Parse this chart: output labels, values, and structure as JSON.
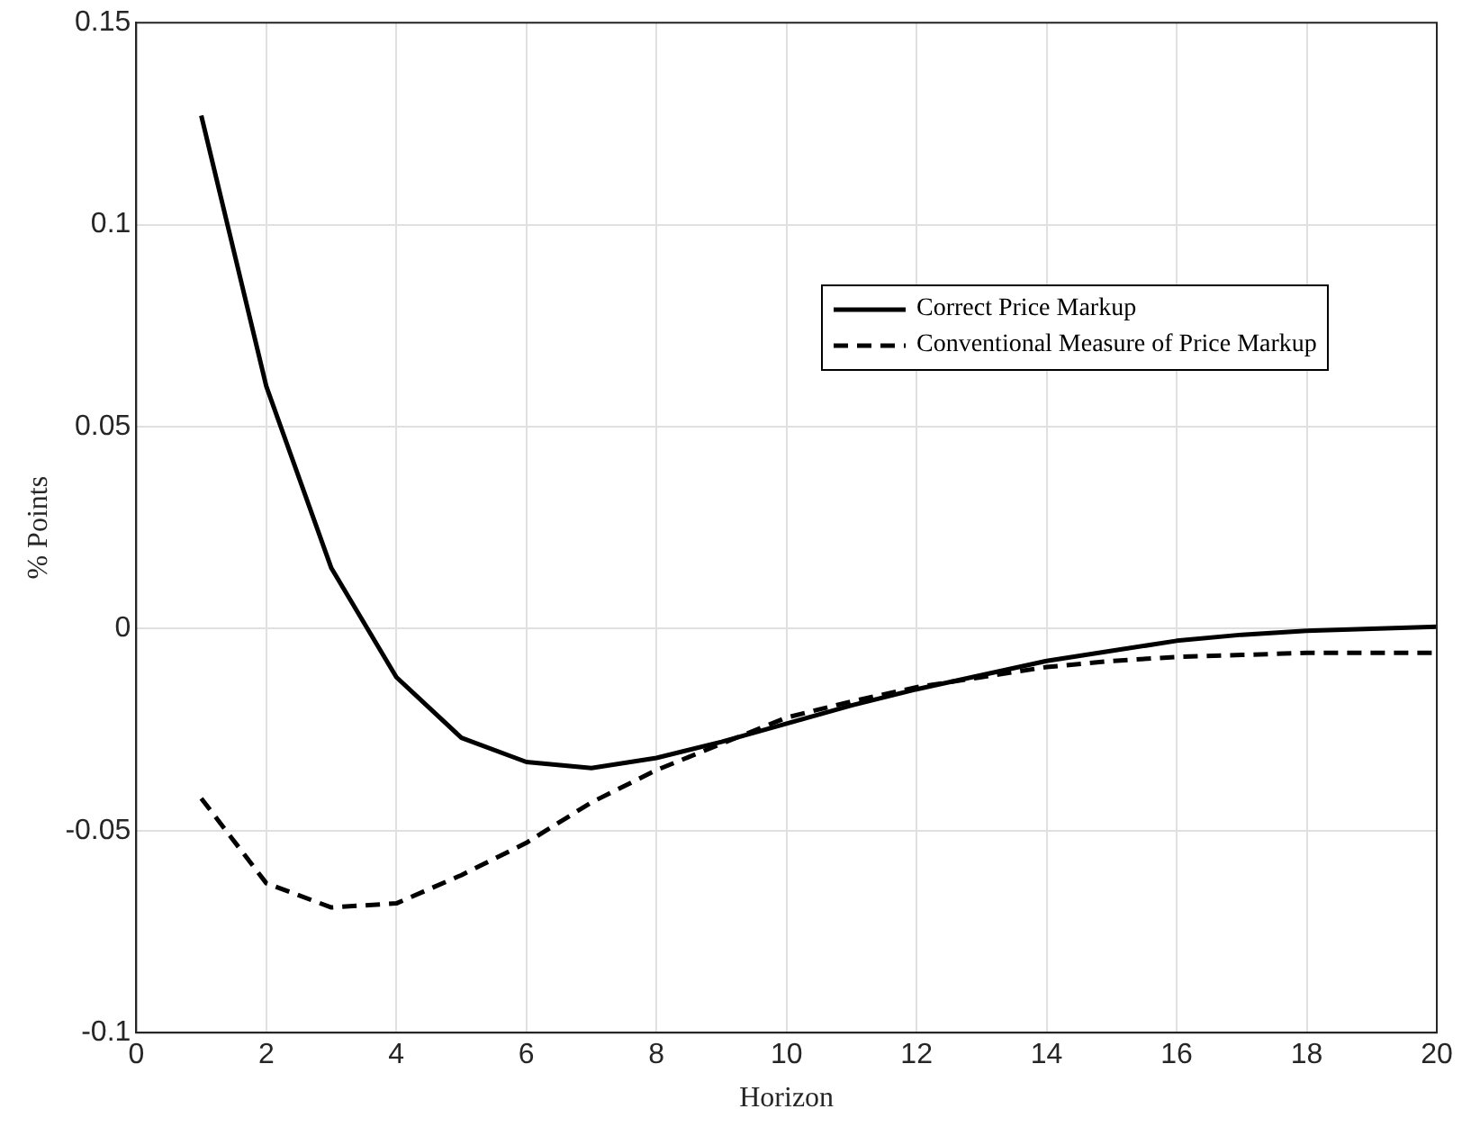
{
  "chart_data": {
    "type": "line",
    "xlabel": "Horizon",
    "ylabel": "% Points",
    "x": [
      1,
      2,
      3,
      4,
      5,
      6,
      7,
      8,
      9,
      10,
      11,
      12,
      13,
      14,
      15,
      16,
      17,
      18,
      19,
      20
    ],
    "series": [
      {
        "name": "Correct Price Markup",
        "color": "#000000",
        "line_style": "solid",
        "values": [
          0.127,
          0.06,
          0.015,
          -0.012,
          -0.027,
          -0.033,
          -0.0345,
          -0.032,
          -0.028,
          -0.0235,
          -0.019,
          -0.015,
          -0.0115,
          -0.008,
          -0.0055,
          -0.003,
          -0.0015,
          -0.0005,
          0,
          0.0005
        ]
      },
      {
        "name": "Conventional Measure of Price Markup",
        "color": "#000000",
        "line_style": "dashed",
        "values": [
          -0.042,
          -0.063,
          -0.069,
          -0.068,
          -0.061,
          -0.053,
          -0.043,
          -0.035,
          -0.0285,
          -0.022,
          -0.018,
          -0.0145,
          -0.012,
          -0.0095,
          -0.008,
          -0.007,
          -0.0065,
          -0.006,
          -0.006,
          -0.006
        ]
      }
    ],
    "xlim": [
      0,
      20
    ],
    "xticks": [
      0,
      2,
      4,
      6,
      8,
      10,
      12,
      14,
      16,
      18,
      20
    ],
    "ylim": [
      -0.1,
      0.15
    ],
    "yticks": [
      -0.1,
      -0.05,
      0,
      0.05,
      0.1,
      0.15
    ],
    "grid": true,
    "legend": "top right",
    "marker": "none"
  }
}
